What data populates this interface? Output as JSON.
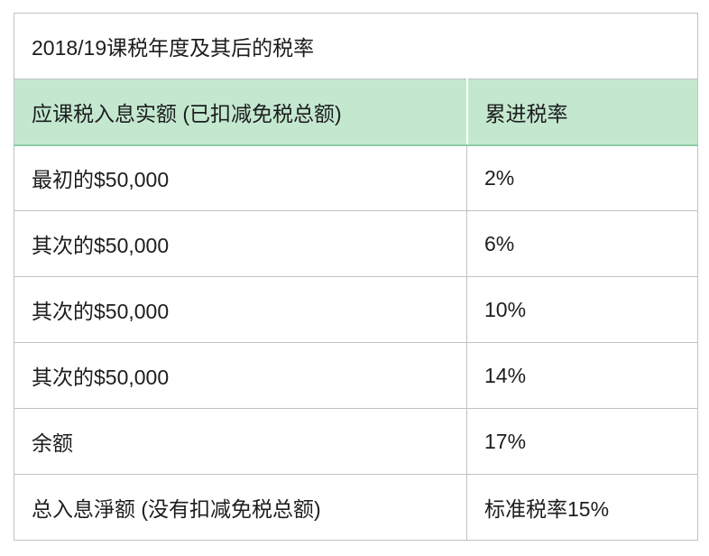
{
  "table": {
    "title": "2018/19课税年度及其后的税率",
    "columns": [
      "应课税入息实额 (已扣减免税总额)",
      "累进税率"
    ],
    "rows": [
      {
        "income": "最初的$50,000",
        "rate": "2%"
      },
      {
        "income": "其次的$50,000",
        "rate": "6%"
      },
      {
        "income": "其次的$50,000",
        "rate": "10%"
      },
      {
        "income": "其次的$50,000",
        "rate": "14%"
      },
      {
        "income": "余额",
        "rate": "17%"
      },
      {
        "income": "总入息淨额 (没有扣减免税总额)",
        "rate": "标准税率15%"
      }
    ]
  },
  "colors": {
    "header_background": "#c4e8cf",
    "header_bottom_border": "#8ecba7",
    "grid_border": "#c1c1c1",
    "text": "#1d1d1f",
    "page_background": "#ffffff"
  },
  "chart_data": {
    "type": "table",
    "title": "2018/19课税年度及其后的税率",
    "columns": [
      "应课税入息实额 (已扣减免税总额)",
      "累进税率"
    ],
    "rows": [
      [
        "最初的$50,000",
        "2%"
      ],
      [
        "其次的$50,000",
        "6%"
      ],
      [
        "其次的$50,000",
        "10%"
      ],
      [
        "其次的$50,000",
        "14%"
      ],
      [
        "余额",
        "17%"
      ],
      [
        "总入息淨额 (没有扣减免税总额)",
        "标准税率15%"
      ]
    ]
  }
}
